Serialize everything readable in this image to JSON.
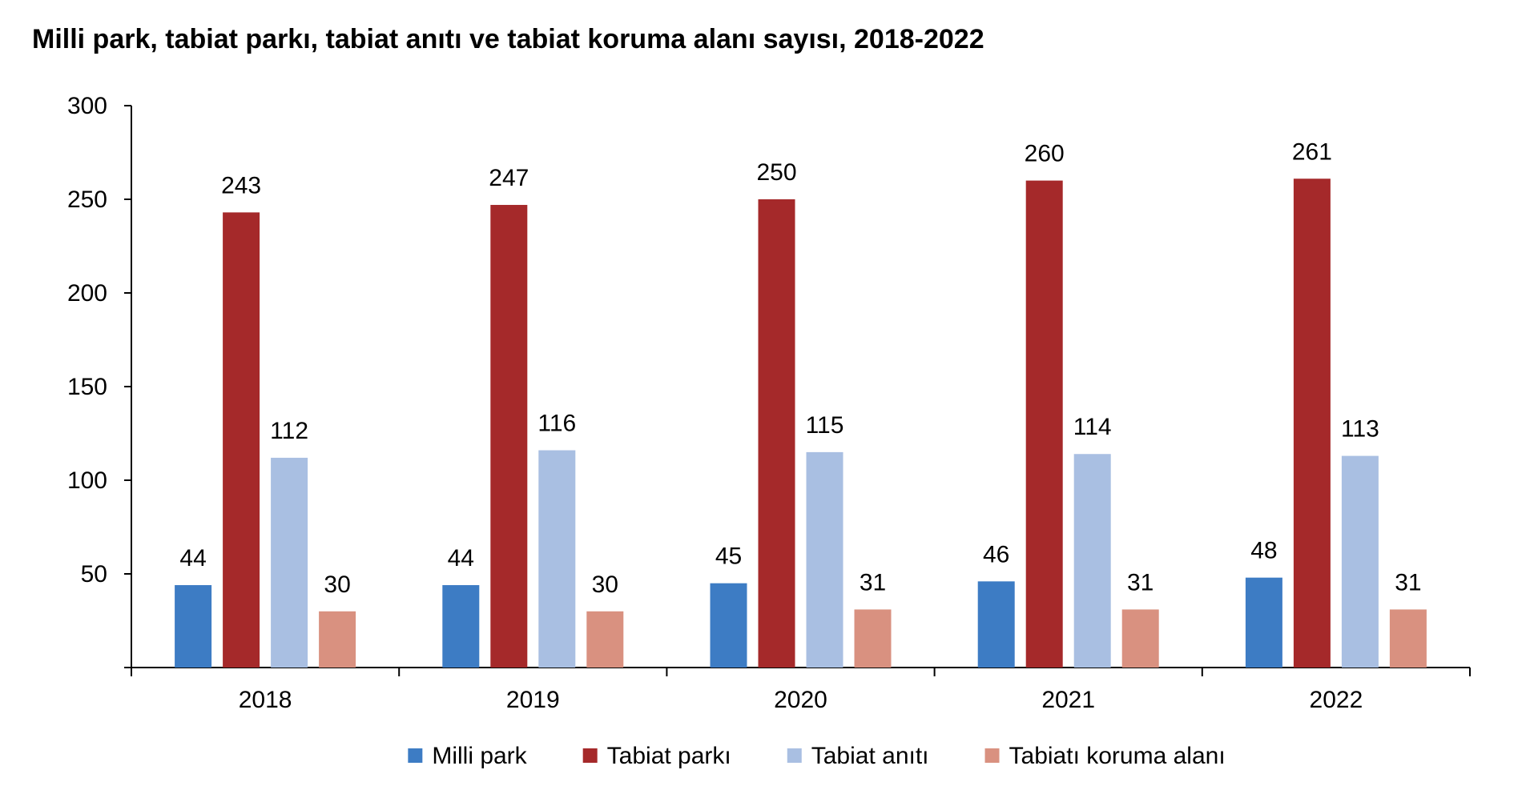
{
  "chart_data": {
    "type": "bar",
    "title": "Milli park, tabiat parkı, tabiat anıtı ve tabiat koruma alanı sayısı, 2018-2022",
    "xlabel": "",
    "ylabel": "",
    "categories": [
      "2018",
      "2019",
      "2020",
      "2021",
      "2022"
    ],
    "ylim": [
      0,
      300
    ],
    "yticks": [
      50,
      100,
      150,
      200,
      250,
      300
    ],
    "grid": false,
    "legend_position": "bottom",
    "series": [
      {
        "name": "Milli park",
        "color": "#3d7cc4",
        "values": [
          44,
          44,
          45,
          46,
          48
        ]
      },
      {
        "name": "Tabiat parkı",
        "color": "#a5292a",
        "values": [
          243,
          247,
          250,
          260,
          261
        ]
      },
      {
        "name": "Tabiat anıtı",
        "color": "#a9bfe2",
        "values": [
          112,
          116,
          115,
          114,
          113
        ]
      },
      {
        "name": "Tabiatı koruma alanı",
        "color": "#d99180",
        "values": [
          30,
          30,
          31,
          31,
          31
        ]
      }
    ]
  }
}
